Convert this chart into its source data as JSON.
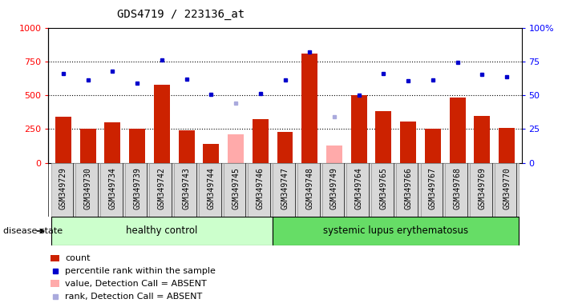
{
  "title": "GDS4719 / 223136_at",
  "samples": [
    "GSM349729",
    "GSM349730",
    "GSM349734",
    "GSM349739",
    "GSM349742",
    "GSM349743",
    "GSM349744",
    "GSM349745",
    "GSM349746",
    "GSM349747",
    "GSM349748",
    "GSM349749",
    "GSM349764",
    "GSM349765",
    "GSM349766",
    "GSM349767",
    "GSM349768",
    "GSM349769",
    "GSM349770"
  ],
  "count_values": [
    340,
    250,
    300,
    250,
    580,
    240,
    140,
    null,
    320,
    230,
    810,
    null,
    500,
    380,
    305,
    250,
    480,
    345,
    255
  ],
  "absent_value_values": [
    null,
    null,
    null,
    null,
    null,
    null,
    null,
    210,
    null,
    null,
    null,
    130,
    null,
    null,
    null,
    null,
    null,
    null,
    null
  ],
  "rank_values": [
    660,
    615,
    680,
    590,
    760,
    620,
    505,
    null,
    510,
    615,
    820,
    null,
    500,
    660,
    605,
    610,
    740,
    655,
    635
  ],
  "absent_rank_values": [
    null,
    null,
    null,
    null,
    null,
    null,
    null,
    440,
    null,
    null,
    null,
    340,
    null,
    null,
    null,
    null,
    null,
    null,
    null
  ],
  "healthy_control_indices": [
    0,
    1,
    2,
    3,
    4,
    5,
    6,
    7,
    8
  ],
  "sle_indices": [
    9,
    10,
    11,
    12,
    13,
    14,
    15,
    16,
    17,
    18
  ],
  "group_labels": [
    "healthy control",
    "systemic lupus erythematosus"
  ],
  "disease_state_label": "disease state",
  "ylim_left": [
    0,
    1000
  ],
  "ylim_right": [
    0,
    100
  ],
  "yticks_left": [
    0,
    250,
    500,
    750,
    1000
  ],
  "yticks_right": [
    0,
    25,
    50,
    75,
    100
  ],
  "bar_color_count": "#cc2200",
  "bar_color_absent_value": "#ffaaaa",
  "dot_color_rank": "#0000cc",
  "dot_color_absent_rank": "#aaaadd",
  "healthy_bg": "#ccffcc",
  "sle_bg": "#66dd66",
  "tick_area_bg": "#d8d8d8",
  "title_fontsize": 10,
  "tick_label_fontsize": 7,
  "legend_fontsize": 8,
  "grid_dotted_values": [
    250,
    500,
    750
  ],
  "fig_width": 7.11,
  "fig_height": 3.84
}
